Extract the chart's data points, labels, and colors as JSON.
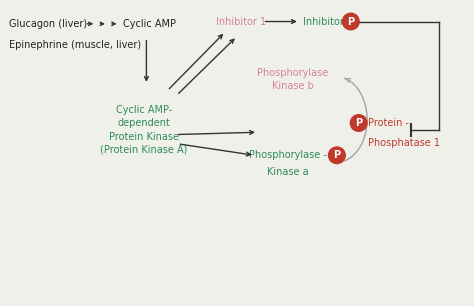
{
  "bg_color": "#f0f0eb",
  "text_black": "#222222",
  "text_green": "#2e8b57",
  "text_pink": "#d4829a",
  "text_red": "#c0392b",
  "phospho_bg": "#c0392b",
  "phospho_text": "#ffffff",
  "arrow_color": "#333333",
  "gray_arrow": "#aaaaaa",
  "figsize": [
    4.74,
    3.06
  ],
  "dpi": 100,
  "xlim": [
    0,
    10
  ],
  "ylim": [
    0,
    6.5
  ]
}
